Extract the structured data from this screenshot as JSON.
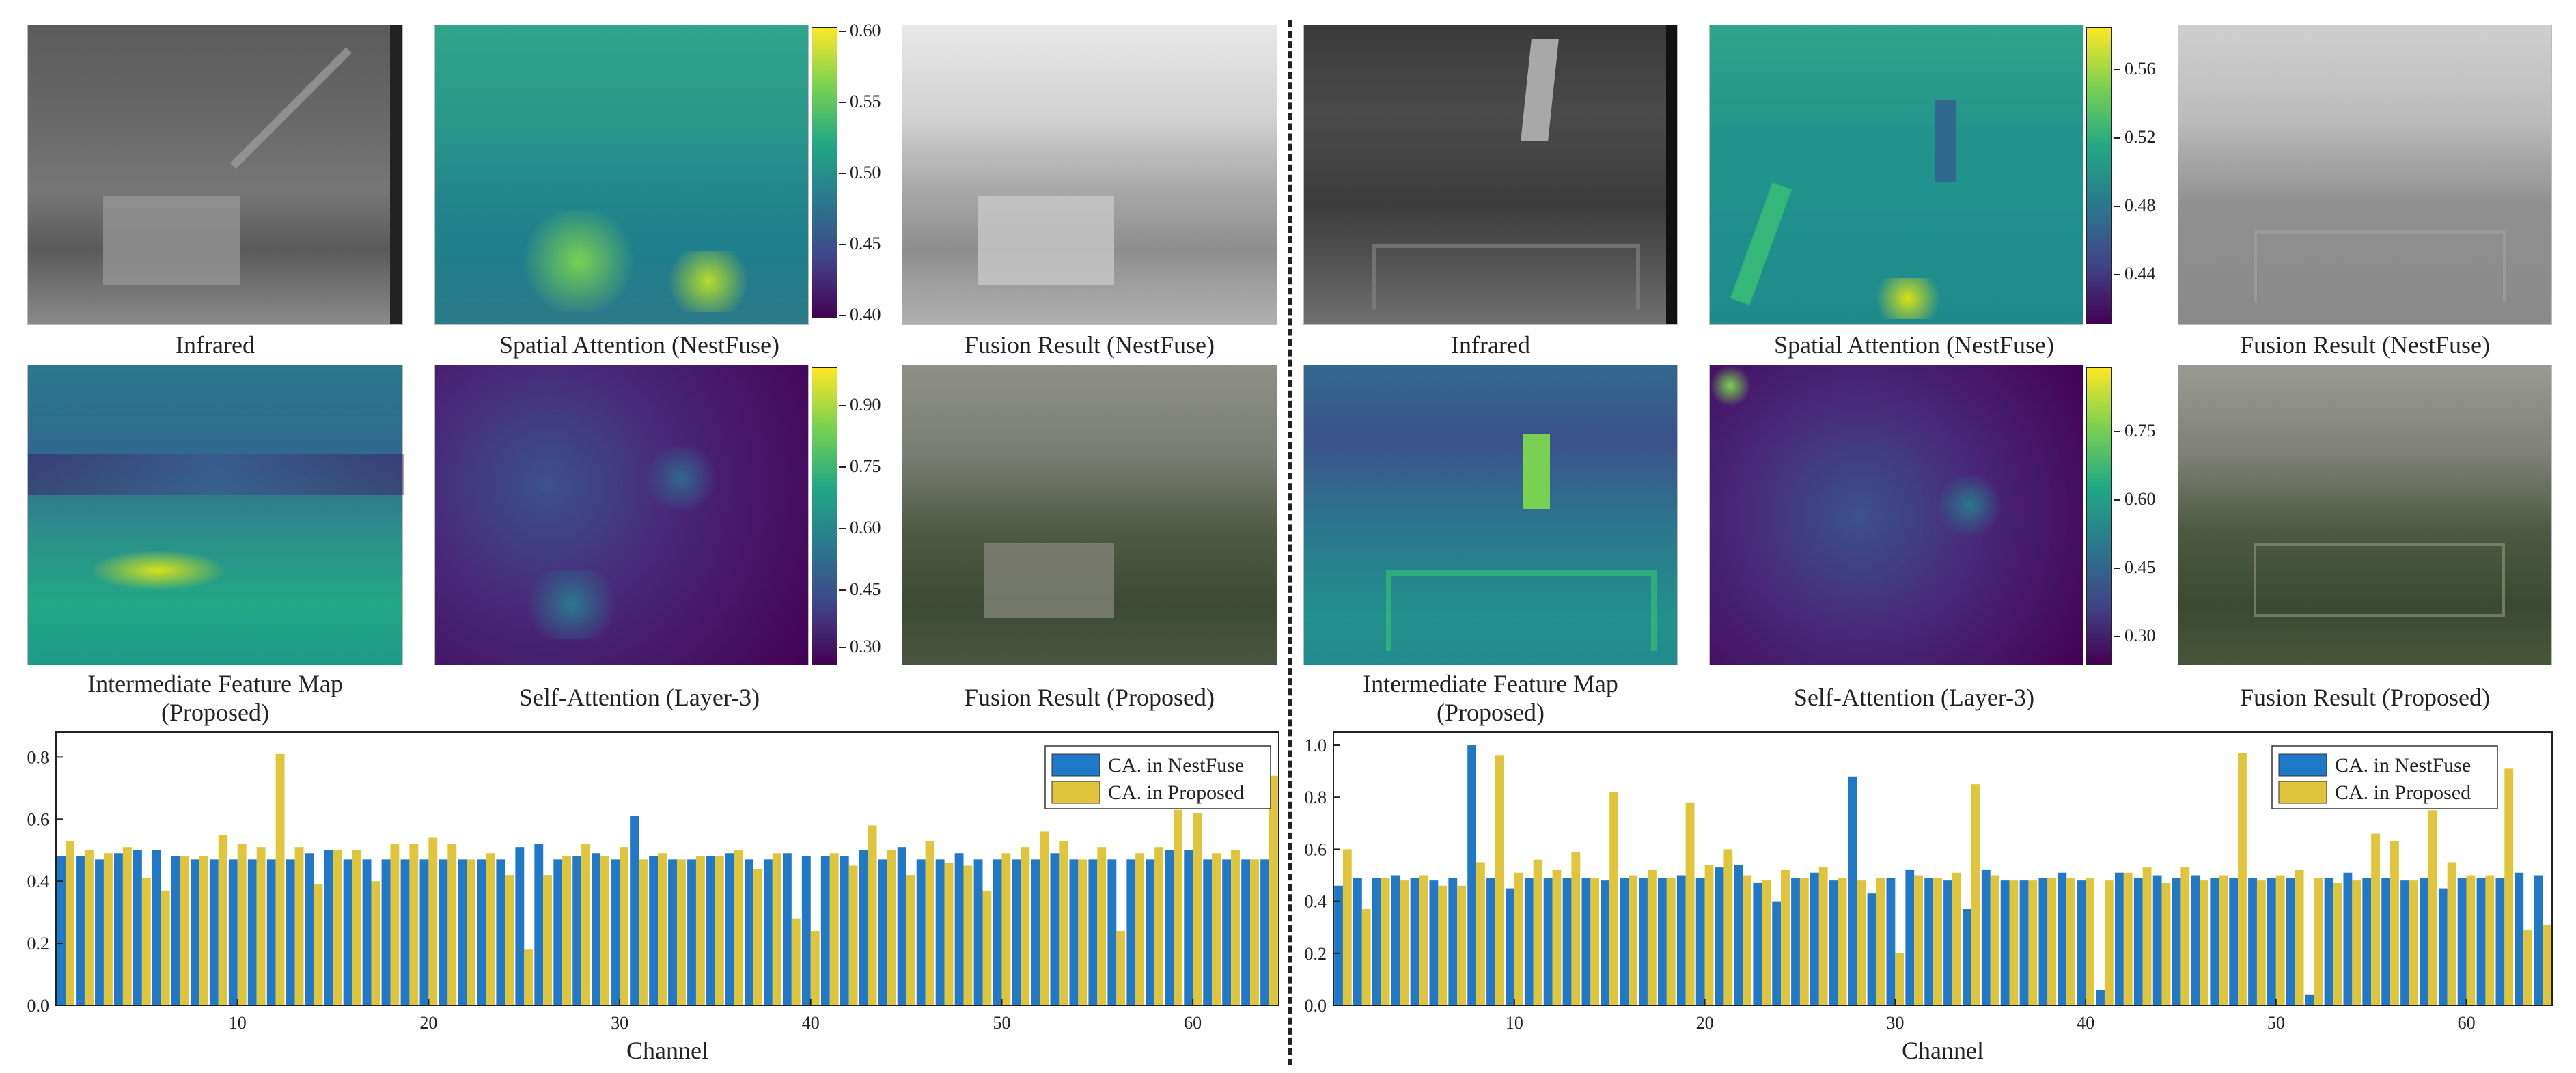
{
  "captions": {
    "infrared": "Infrared",
    "spatial_attention": "Spatial Attention (NestFuse)",
    "fusion_nestfuse": "Fusion Result (NestFuse)",
    "intermediate_line1": "Intermediate Feature Map",
    "intermediate_line2": "(Proposed)",
    "self_attention": "Self-Attention (Layer-3)",
    "fusion_proposed": "Fusion Result (Proposed)"
  },
  "colorbars": {
    "left_top": [
      "0.60",
      "0.55",
      "0.50",
      "0.45",
      "0.40"
    ],
    "left_bottom": [
      "0.90",
      "0.75",
      "0.60",
      "0.45",
      "0.30"
    ],
    "right_top": [
      "0.56",
      "0.52",
      "0.48",
      "0.44"
    ],
    "right_bottom": [
      "0.75",
      "0.60",
      "0.45",
      "0.30"
    ]
  },
  "colors": {
    "nestfuse": "#1f78c8",
    "proposed": "#e0c43a",
    "viridis_low": "#440154",
    "viridis_mid": "#21918c",
    "viridis_high": "#fde725"
  },
  "chart_data": [
    {
      "type": "bar",
      "xlabel": "Channel",
      "ylabel": "",
      "ylim": [
        0,
        0.88
      ],
      "xlim": [
        0.5,
        64.5
      ],
      "xticks": [
        10,
        20,
        30,
        40,
        50,
        60
      ],
      "yticks": [
        0.0,
        0.2,
        0.4,
        0.6,
        0.8
      ],
      "legend_position": "top-right",
      "categories": [
        1,
        2,
        3,
        4,
        5,
        6,
        7,
        8,
        9,
        10,
        11,
        12,
        13,
        14,
        15,
        16,
        17,
        18,
        19,
        20,
        21,
        22,
        23,
        24,
        25,
        26,
        27,
        28,
        29,
        30,
        31,
        32,
        33,
        34,
        35,
        36,
        37,
        38,
        39,
        40,
        41,
        42,
        43,
        44,
        45,
        46,
        47,
        48,
        49,
        50,
        51,
        52,
        53,
        54,
        55,
        56,
        57,
        58,
        59,
        60,
        61,
        62,
        63,
        64
      ],
      "series": [
        {
          "name": "CA. in NestFuse",
          "values": [
            0.48,
            0.48,
            0.47,
            0.49,
            0.5,
            0.5,
            0.48,
            0.47,
            0.47,
            0.47,
            0.47,
            0.47,
            0.47,
            0.49,
            0.5,
            0.47,
            0.47,
            0.47,
            0.47,
            0.47,
            0.47,
            0.47,
            0.47,
            0.47,
            0.51,
            0.52,
            0.47,
            0.48,
            0.49,
            0.47,
            0.61,
            0.48,
            0.47,
            0.47,
            0.48,
            0.49,
            0.47,
            0.47,
            0.49,
            0.48,
            0.48,
            0.48,
            0.5,
            0.47,
            0.51,
            0.47,
            0.47,
            0.49,
            0.47,
            0.47,
            0.47,
            0.47,
            0.49,
            0.47,
            0.47,
            0.47,
            0.47,
            0.47,
            0.5,
            0.5,
            0.47,
            0.47,
            0.47,
            0.47
          ]
        },
        {
          "name": "CA. in Proposed",
          "values": [
            0.53,
            0.5,
            0.49,
            0.51,
            0.41,
            0.37,
            0.48,
            0.48,
            0.55,
            0.52,
            0.51,
            0.81,
            0.51,
            0.39,
            0.5,
            0.5,
            0.4,
            0.52,
            0.52,
            0.54,
            0.52,
            0.47,
            0.49,
            0.42,
            0.18,
            0.42,
            0.48,
            0.52,
            0.48,
            0.51,
            0.47,
            0.49,
            0.47,
            0.48,
            0.48,
            0.5,
            0.44,
            0.49,
            0.28,
            0.24,
            0.49,
            0.45,
            0.58,
            0.5,
            0.42,
            0.53,
            0.46,
            0.45,
            0.37,
            0.49,
            0.51,
            0.56,
            0.53,
            0.47,
            0.51,
            0.24,
            0.49,
            0.51,
            0.63,
            0.62,
            0.49,
            0.5,
            0.47,
            0.74
          ]
        }
      ]
    },
    {
      "type": "bar",
      "xlabel": "Channel",
      "ylabel": "",
      "ylim": [
        0,
        1.05
      ],
      "xlim": [
        0.5,
        64.5
      ],
      "xticks": [
        10,
        20,
        30,
        40,
        50,
        60
      ],
      "yticks": [
        0.0,
        0.2,
        0.4,
        0.6,
        0.8,
        1.0
      ],
      "legend_position": "top-right",
      "categories": [
        1,
        2,
        3,
        4,
        5,
        6,
        7,
        8,
        9,
        10,
        11,
        12,
        13,
        14,
        15,
        16,
        17,
        18,
        19,
        20,
        21,
        22,
        23,
        24,
        25,
        26,
        27,
        28,
        29,
        30,
        31,
        32,
        33,
        34,
        35,
        36,
        37,
        38,
        39,
        40,
        41,
        42,
        43,
        44,
        45,
        46,
        47,
        48,
        49,
        50,
        51,
        52,
        53,
        54,
        55,
        56,
        57,
        58,
        59,
        60,
        61,
        62,
        63,
        64
      ],
      "series": [
        {
          "name": "CA. in NestFuse",
          "values": [
            0.46,
            0.49,
            0.49,
            0.5,
            0.49,
            0.48,
            0.49,
            1.0,
            0.49,
            0.45,
            0.49,
            0.49,
            0.49,
            0.49,
            0.48,
            0.49,
            0.49,
            0.49,
            0.5,
            0.49,
            0.53,
            0.54,
            0.47,
            0.4,
            0.49,
            0.51,
            0.48,
            0.88,
            0.43,
            0.49,
            0.52,
            0.49,
            0.48,
            0.37,
            0.52,
            0.48,
            0.48,
            0.49,
            0.51,
            0.48,
            0.06,
            0.51,
            0.49,
            0.5,
            0.49,
            0.5,
            0.49,
            0.49,
            0.49,
            0.49,
            0.49,
            0.04,
            0.49,
            0.51,
            0.49,
            0.49,
            0.48,
            0.49,
            0.45,
            0.49,
            0.49,
            0.49,
            0.51,
            0.5
          ]
        },
        {
          "name": "CA. in Proposed",
          "values": [
            0.6,
            0.37,
            0.49,
            0.48,
            0.5,
            0.46,
            0.46,
            0.55,
            0.96,
            0.51,
            0.56,
            0.52,
            0.59,
            0.49,
            0.82,
            0.5,
            0.52,
            0.49,
            0.78,
            0.54,
            0.6,
            0.5,
            0.48,
            0.52,
            0.49,
            0.53,
            0.49,
            0.48,
            0.49,
            0.2,
            0.5,
            0.49,
            0.51,
            0.85,
            0.5,
            0.48,
            0.48,
            0.49,
            0.49,
            0.49,
            0.48,
            0.51,
            0.53,
            0.47,
            0.53,
            0.48,
            0.5,
            0.97,
            0.48,
            0.5,
            0.52,
            0.49,
            0.47,
            0.48,
            0.66,
            0.63,
            0.48,
            0.75,
            0.55,
            0.5,
            0.5,
            0.91,
            0.29,
            0.31
          ]
        }
      ]
    }
  ]
}
